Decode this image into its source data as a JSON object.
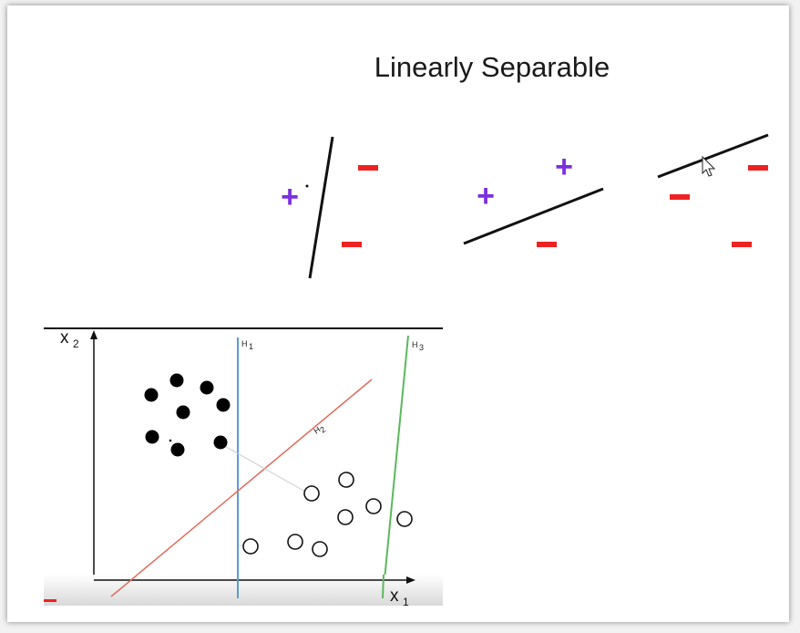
{
  "slide": {
    "title": "Linearly Separable"
  },
  "symbols": {
    "plus": "+",
    "minus": "−",
    "plus_color": "#7b2fe0",
    "minus_color": "#ee2222"
  },
  "diagram": {
    "x_axis_label": "x",
    "x_axis_sub": "1",
    "y_axis_label": "x",
    "y_axis_sub": "2",
    "hyperplanes": [
      {
        "name": "H",
        "sub": "1",
        "color": "#5b9bd5"
      },
      {
        "name": "H",
        "sub": "2",
        "color": "#e06c5e"
      },
      {
        "name": "H",
        "sub": "3",
        "color": "#5cb85c"
      }
    ],
    "class_a_style": "filled",
    "class_b_style": "hollow"
  }
}
